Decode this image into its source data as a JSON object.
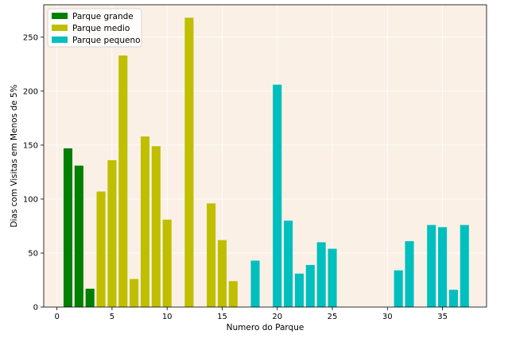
{
  "chart_data": {
    "type": "bar",
    "xlabel": "Numero do Parque",
    "ylabel": "Dias com Visitas em Menos de 5%",
    "xlim": [
      -1.2,
      39
    ],
    "ylim": [
      0,
      280
    ],
    "xticks": [
      0,
      5,
      10,
      15,
      20,
      25,
      30,
      35
    ],
    "yticks": [
      0,
      50,
      100,
      150,
      200,
      250
    ],
    "grid": true,
    "legend_position": "top-left",
    "background_color": "#faf0e6",
    "series": [
      {
        "name": "Parque grande",
        "color": "#008000",
        "x": [
          1,
          2,
          3
        ],
        "values": [
          147,
          131,
          17
        ]
      },
      {
        "name": "Parque medio",
        "color": "#bfbf00",
        "x": [
          4,
          5,
          6,
          7,
          8,
          9,
          10,
          12,
          14,
          15,
          16
        ],
        "values": [
          107,
          136,
          233,
          26,
          158,
          149,
          81,
          268,
          96,
          62,
          24
        ]
      },
      {
        "name": "Parque pequeno",
        "color": "#00bfbf",
        "x": [
          18,
          20,
          21,
          22,
          23,
          24,
          25,
          31,
          32,
          34,
          35,
          36,
          37
        ],
        "values": [
          43,
          206,
          80,
          31,
          39,
          60,
          54,
          34,
          61,
          76,
          74,
          16,
          76
        ]
      }
    ]
  }
}
